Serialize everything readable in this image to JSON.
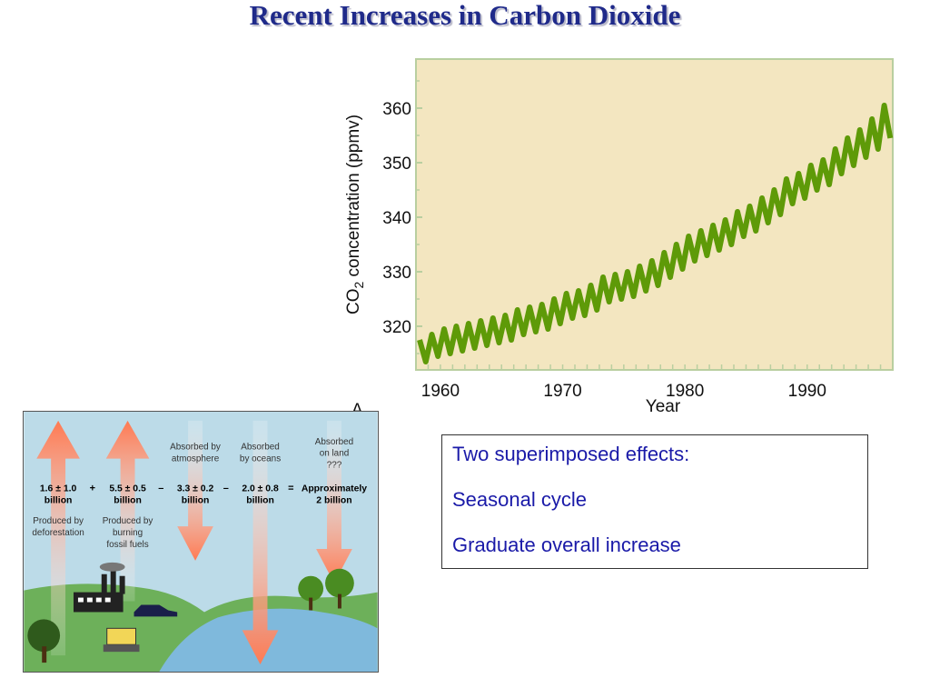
{
  "slide": {
    "title": "Recent Increases in Carbon Dioxide"
  },
  "chart_data": {
    "type": "line",
    "ylabel": "CO",
    "ylabel_subscript": "2",
    "ylabel_rest": " concentration (ppmv)",
    "xlabel": "Year",
    "panel_label": "A",
    "xlim": [
      1958,
      1997
    ],
    "ylim": [
      312,
      369
    ],
    "x_ticks": [
      1960,
      1970,
      1980,
      1990
    ],
    "y_ticks": [
      320,
      330,
      340,
      350,
      360
    ],
    "grid": false,
    "colors": {
      "plot_bg": "#f3e6c0",
      "line": "#5e9a08"
    },
    "series": [
      {
        "name": "",
        "x": [
          1958.3,
          1958.8,
          1959.3,
          1959.8,
          1960.3,
          1960.8,
          1961.3,
          1961.8,
          1962.3,
          1962.8,
          1963.3,
          1963.8,
          1964.3,
          1964.8,
          1965.3,
          1965.8,
          1966.3,
          1966.8,
          1967.3,
          1967.8,
          1968.3,
          1968.8,
          1969.3,
          1969.8,
          1970.3,
          1970.8,
          1971.3,
          1971.8,
          1972.3,
          1972.8,
          1973.3,
          1973.8,
          1974.3,
          1974.8,
          1975.3,
          1975.8,
          1976.3,
          1976.8,
          1977.3,
          1977.8,
          1978.3,
          1978.8,
          1979.3,
          1979.8,
          1980.3,
          1980.8,
          1981.3,
          1981.8,
          1982.3,
          1982.8,
          1983.3,
          1983.8,
          1984.3,
          1984.8,
          1985.3,
          1985.8,
          1986.3,
          1986.8,
          1987.3,
          1987.8,
          1988.3,
          1988.8,
          1989.3,
          1989.8,
          1990.3,
          1990.8,
          1991.3,
          1991.8,
          1992.3,
          1992.8,
          1993.3,
          1993.8,
          1994.3,
          1994.8,
          1995.3,
          1995.8,
          1996.3,
          1996.8
        ],
        "y": [
          317.5,
          313.5,
          318.5,
          314.5,
          319.5,
          315.0,
          320.0,
          315.5,
          320.5,
          316.0,
          321.0,
          316.5,
          321.5,
          317.0,
          322.0,
          317.5,
          323.0,
          318.5,
          323.5,
          319.0,
          324.0,
          319.5,
          325.0,
          320.5,
          326.0,
          321.5,
          326.5,
          322.0,
          327.5,
          323.0,
          329.0,
          324.5,
          329.5,
          325.0,
          330.0,
          325.5,
          331.0,
          326.5,
          332.0,
          327.5,
          333.5,
          329.0,
          335.0,
          330.5,
          336.5,
          332.0,
          337.5,
          333.0,
          338.5,
          334.0,
          339.5,
          335.0,
          341.0,
          336.5,
          342.0,
          337.5,
          343.5,
          339.0,
          345.0,
          340.5,
          347.0,
          342.5,
          348.0,
          343.5,
          349.5,
          345.0,
          350.5,
          346.0,
          352.5,
          348.0,
          354.5,
          349.5,
          356.0,
          351.0,
          358.0,
          352.5,
          360.5,
          354.5
        ]
      }
    ]
  },
  "carbon_budget": {
    "items": [
      {
        "value": "1.6 ± 1.0",
        "unit": "billion",
        "desc": [
          "Produced by",
          "deforestation"
        ]
      },
      {
        "value": "5.5 ± 0.5",
        "unit": "billion",
        "desc": [
          "Produced by",
          "burning",
          "fossil fuels"
        ]
      },
      {
        "value": "3.3 ± 0.2",
        "unit": "billion",
        "desc": [
          "Absorbed by",
          "atmosphere"
        ]
      },
      {
        "value": "2.0 ± 0.8",
        "unit": "billion",
        "desc": [
          "Absorbed",
          "by oceans"
        ]
      },
      {
        "value": "Approximately",
        "unit": "2 billion",
        "desc": [
          "Absorbed",
          "on land",
          "???"
        ]
      }
    ],
    "ops": [
      "+",
      "–",
      "–",
      "="
    ],
    "colors": {
      "sky": "#bcdbe8",
      "land": "#6db05a",
      "water": "#7fb9dc",
      "arrow": "#ff7a52"
    }
  },
  "notes": {
    "lines": [
      "Two superimposed effects:",
      "Seasonal cycle",
      "Graduate overall increase"
    ]
  }
}
